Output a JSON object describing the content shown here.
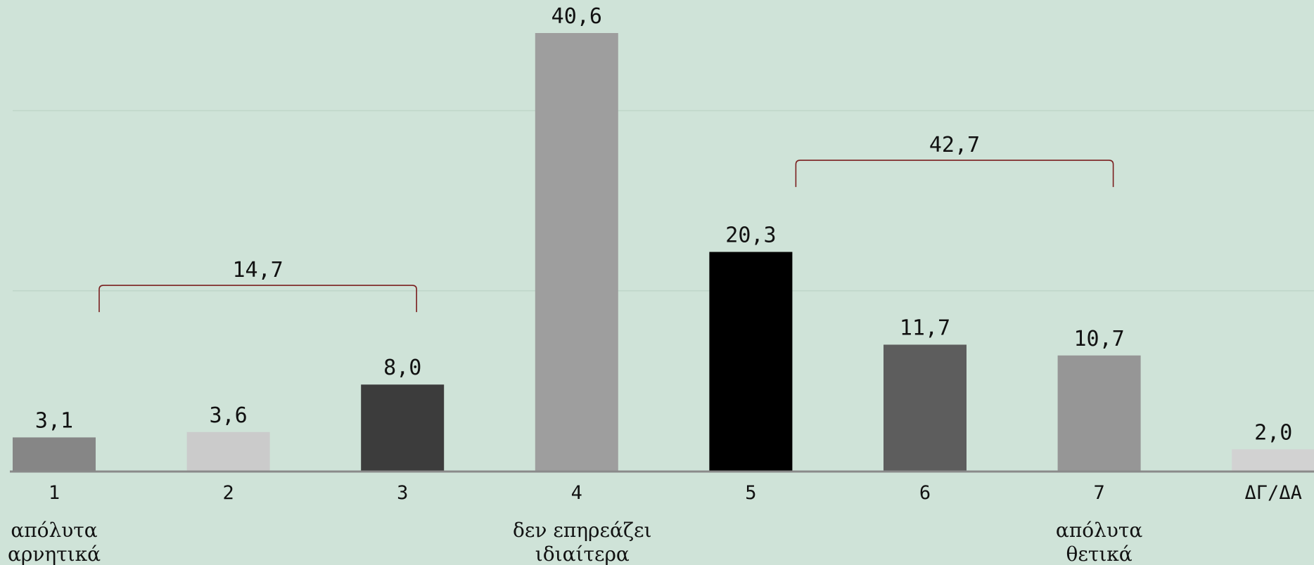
{
  "chart_data": {
    "type": "bar",
    "categories": [
      "1",
      "2",
      "3",
      "4",
      "5",
      "6",
      "7",
      "ΔΓ/ΔΑ"
    ],
    "values": [
      3.1,
      3.6,
      8.0,
      40.6,
      20.3,
      11.7,
      10.7,
      2.0
    ],
    "value_labels": [
      "3,1",
      "3,6",
      "8,0",
      "40,6",
      "20,3",
      "11,7",
      "10,7",
      "2,0"
    ],
    "colors": [
      "#868686",
      "#cbcbcb",
      "#3c3c3c",
      "#9e9e9e",
      "#000000",
      "#5d5d5d",
      "#969696",
      "#d2d2d2"
    ],
    "ylim": [
      0,
      42
    ],
    "grid": true,
    "grid_values": [
      16.7,
      33.4
    ],
    "title": "",
    "xlabel": "",
    "ylabel": "",
    "scale_labels": [
      {
        "category_index": 0,
        "lines": [
          "απόλυτα",
          "αρνητικά"
        ]
      },
      {
        "category_index": 3,
        "lines": [
          "δεν επηρεάζει",
          "ιδιαίτερα"
        ]
      },
      {
        "category_index": 6,
        "lines": [
          "απόλυτα",
          "θετικά"
        ]
      }
    ],
    "brackets": [
      {
        "from": 0,
        "to": 2,
        "label": "14,7",
        "level": 17.2
      },
      {
        "from": 4,
        "to": 6,
        "label": "42,7",
        "level": 28.8
      }
    ],
    "bracket_color": "#7a1f1f"
  }
}
